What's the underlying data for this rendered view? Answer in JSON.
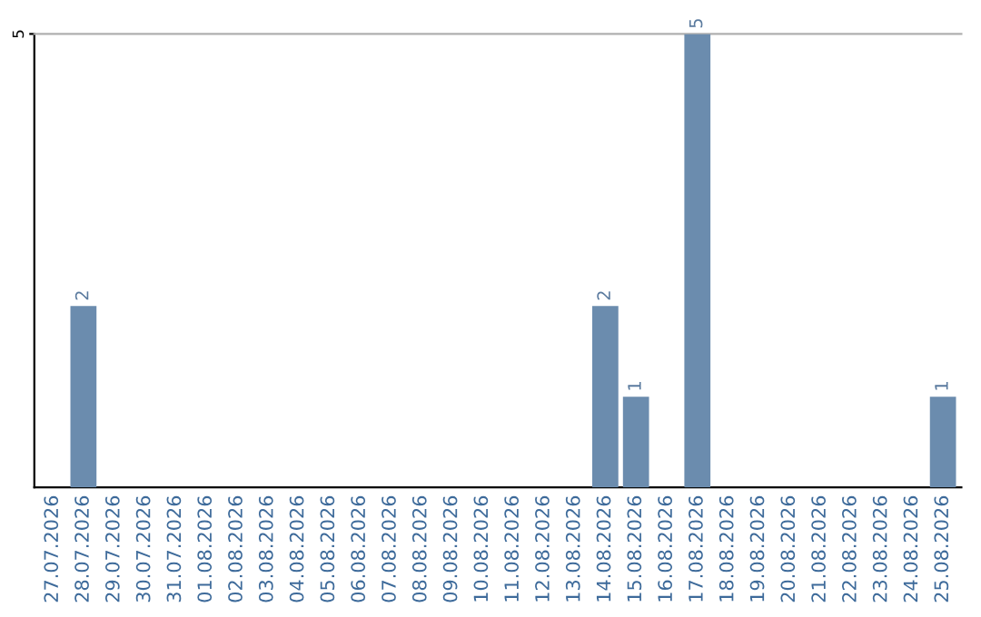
{
  "chart_data": {
    "type": "bar",
    "categories": [
      "27.07.2026",
      "28.07.2026",
      "29.07.2026",
      "30.07.2026",
      "31.07.2026",
      "01.08.2026",
      "02.08.2026",
      "03.08.2026",
      "04.08.2026",
      "05.08.2026",
      "06.08.2026",
      "07.08.2026",
      "08.08.2026",
      "09.08.2026",
      "10.08.2026",
      "11.08.2026",
      "12.08.2026",
      "13.08.2026",
      "14.08.2026",
      "15.08.2026",
      "16.08.2026",
      "17.08.2026",
      "18.08.2026",
      "19.08.2026",
      "20.08.2026",
      "21.08.2026",
      "22.08.2026",
      "23.08.2026",
      "24.08.2026",
      "25.08.2026"
    ],
    "values": [
      0,
      2,
      0,
      0,
      0,
      0,
      0,
      0,
      0,
      0,
      0,
      0,
      0,
      0,
      0,
      0,
      0,
      0,
      2,
      1,
      0,
      5,
      0,
      0,
      0,
      0,
      0,
      0,
      0,
      1
    ],
    "value_labels": [
      null,
      "2",
      null,
      null,
      null,
      null,
      null,
      null,
      null,
      null,
      null,
      null,
      null,
      null,
      null,
      null,
      null,
      null,
      "2",
      "1",
      null,
      "5",
      null,
      null,
      null,
      null,
      null,
      null,
      null,
      "1"
    ],
    "color": "#6b8cae",
    "ylim": [
      0,
      5
    ],
    "yticks": [
      5
    ]
  }
}
